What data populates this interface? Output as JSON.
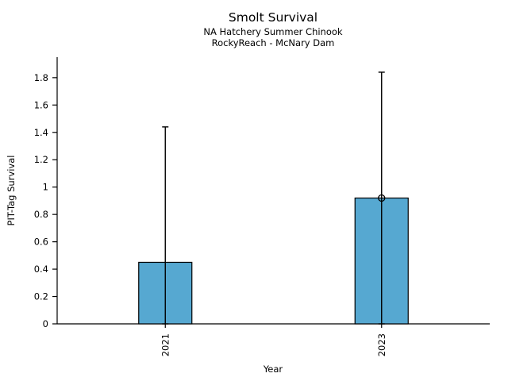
{
  "figure": {
    "title": "Smolt Survival",
    "subtitle1": "NA Hatchery Summer Chinook",
    "subtitle2": "RockyReach - McNary Dam"
  },
  "chart_data": {
    "type": "bar",
    "title": "Smolt Survival",
    "subtitle": [
      "NA Hatchery Summer Chinook",
      "RockyReach - McNary Dam"
    ],
    "xlabel": "Year",
    "ylabel": "PIT-Tag Survival",
    "categories": [
      "2021",
      "2023"
    ],
    "values": [
      0.45,
      0.92
    ],
    "error_upper": [
      1.44,
      1.84
    ],
    "error_lower": [
      0,
      0
    ],
    "points": [
      {
        "category": "2023",
        "value": 0.92
      }
    ],
    "yticks": [
      0,
      0.2,
      0.4,
      0.6,
      0.8,
      1,
      1.2,
      1.4,
      1.6,
      1.8
    ],
    "ytick_labels": [
      "0",
      "0.2",
      "0.4",
      "0.6",
      "0.8",
      "1",
      "1.2",
      "1.4",
      "1.6",
      "1.8"
    ],
    "ylim": [
      0,
      1.95
    ],
    "grid": false,
    "legend": "none",
    "bar_color": "#56a8d1",
    "bar_edge_color": "#000000",
    "axis_color": "#000000",
    "x_tick_label_rotation_deg": 90
  }
}
